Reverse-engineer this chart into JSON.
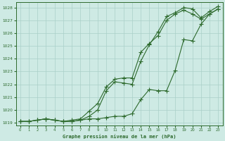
{
  "title": "Graphe pression niveau de la mer (hPa)",
  "background_color": "#ceeae4",
  "grid_color": "#aacfc8",
  "line_color": "#2d6a2d",
  "xlim": [
    -0.5,
    23.5
  ],
  "ylim": [
    1018.8,
    1028.4
  ],
  "yticks": [
    1019,
    1020,
    1021,
    1022,
    1023,
    1024,
    1025,
    1026,
    1027,
    1028
  ],
  "xticks": [
    0,
    1,
    2,
    3,
    4,
    5,
    6,
    7,
    8,
    9,
    10,
    11,
    12,
    13,
    14,
    15,
    16,
    17,
    18,
    19,
    20,
    21,
    22,
    23
  ],
  "line1_x": [
    0,
    1,
    2,
    3,
    4,
    5,
    6,
    7,
    8,
    9,
    10,
    11,
    12,
    13,
    14,
    15,
    16,
    17,
    18,
    19,
    20,
    21,
    22,
    23
  ],
  "line1_y": [
    1019.1,
    1019.1,
    1019.2,
    1019.3,
    1019.2,
    1019.1,
    1019.1,
    1019.2,
    1019.5,
    1020.0,
    1021.5,
    1022.2,
    1022.1,
    1022.0,
    1023.8,
    1025.1,
    1026.1,
    1027.3,
    1027.6,
    1028.0,
    1027.9,
    1027.2,
    1027.7,
    1028.1
  ],
  "line2_x": [
    0,
    1,
    2,
    3,
    4,
    5,
    6,
    7,
    8,
    9,
    10,
    11,
    12,
    13,
    14,
    15,
    16,
    17,
    18,
    19,
    20,
    21,
    22,
    23
  ],
  "line2_y": [
    1019.1,
    1019.1,
    1019.2,
    1019.3,
    1019.2,
    1019.1,
    1019.2,
    1019.3,
    1019.9,
    1020.5,
    1021.8,
    1022.4,
    1022.5,
    1022.5,
    1024.5,
    1025.2,
    1025.8,
    1027.0,
    1027.5,
    1027.8,
    1027.5,
    1027.1,
    1027.5,
    1027.9
  ],
  "line3_x": [
    0,
    1,
    2,
    3,
    4,
    5,
    6,
    7,
    8,
    9,
    10,
    11,
    12,
    13,
    14,
    15,
    16,
    17,
    18,
    19,
    20,
    21,
    22,
    23
  ],
  "line3_y": [
    1019.1,
    1019.1,
    1019.2,
    1019.3,
    1019.2,
    1019.1,
    1019.1,
    1019.2,
    1019.3,
    1019.3,
    1019.4,
    1019.5,
    1019.5,
    1019.7,
    1020.8,
    1021.6,
    1021.5,
    1021.5,
    1023.1,
    1025.5,
    1025.4,
    1026.7,
    1027.5,
    1027.9
  ]
}
